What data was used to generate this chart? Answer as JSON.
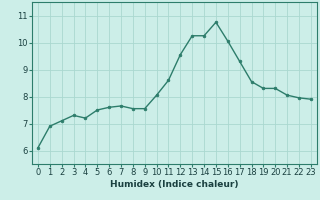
{
  "x": [
    0,
    1,
    2,
    3,
    4,
    5,
    6,
    7,
    8,
    9,
    10,
    11,
    12,
    13,
    14,
    15,
    16,
    17,
    18,
    19,
    20,
    21,
    22,
    23
  ],
  "y": [
    6.1,
    6.9,
    7.1,
    7.3,
    7.2,
    7.5,
    7.6,
    7.65,
    7.55,
    7.55,
    8.05,
    8.6,
    9.55,
    10.25,
    10.25,
    10.75,
    10.05,
    9.3,
    8.55,
    8.3,
    8.3,
    8.05,
    7.95,
    7.9
  ],
  "line_color": "#2d7d6b",
  "marker": "o",
  "markersize": 2.0,
  "linewidth": 1.0,
  "bg_color": "#cceee8",
  "grid_color": "#aad8d0",
  "xlabel": "Humidex (Indice chaleur)",
  "xlim": [
    -0.5,
    23.5
  ],
  "ylim": [
    5.5,
    11.5
  ],
  "yticks": [
    6,
    7,
    8,
    9,
    10,
    11
  ],
  "xticks": [
    0,
    1,
    2,
    3,
    4,
    5,
    6,
    7,
    8,
    9,
    10,
    11,
    12,
    13,
    14,
    15,
    16,
    17,
    18,
    19,
    20,
    21,
    22,
    23
  ],
  "xlabel_fontsize": 6.5,
  "tick_fontsize": 6.0,
  "spine_color": "#2d7d6b",
  "text_color": "#1a4040"
}
